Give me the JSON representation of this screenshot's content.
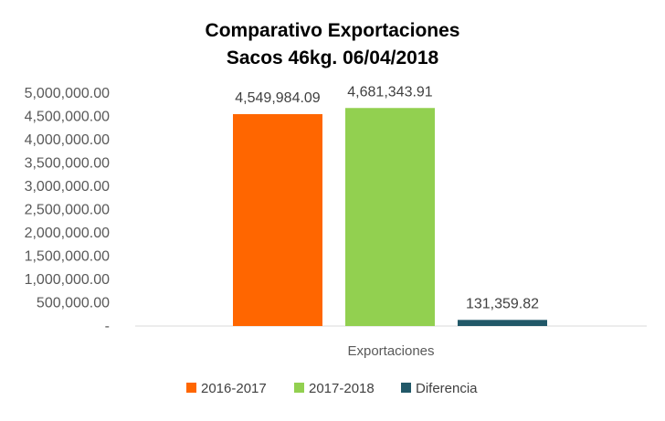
{
  "chart_data": {
    "type": "bar",
    "title": [
      "Comparativo  Exportaciones",
      "Sacos 46kg. 06/04/2018"
    ],
    "categories": [
      "Exportaciones"
    ],
    "series": [
      {
        "name": "2016-2017",
        "color": "#ff6600",
        "values": [
          4549984.09
        ],
        "label": "4,549,984.09"
      },
      {
        "name": "2017-2018",
        "color": "#92d050",
        "values": [
          4681343.91
        ],
        "label": "4,681,343.91"
      },
      {
        "name": "Diferencia",
        "color": "#215868",
        "values": [
          131359.82
        ],
        "label": "131,359.82"
      }
    ],
    "ylim": [
      0,
      5000000
    ],
    "yticks": [
      {
        "value": 0,
        "label": "-"
      },
      {
        "value": 500000,
        "label": "500,000.00"
      },
      {
        "value": 1000000,
        "label": "1,000,000.00"
      },
      {
        "value": 1500000,
        "label": "1,500,000.00"
      },
      {
        "value": 2000000,
        "label": "2,000,000.00"
      },
      {
        "value": 2500000,
        "label": "2,500,000.00"
      },
      {
        "value": 3000000,
        "label": "3,000,000.00"
      },
      {
        "value": 3500000,
        "label": "3,500,000.00"
      },
      {
        "value": 4000000,
        "label": "4,000,000.00"
      },
      {
        "value": 4500000,
        "label": "4,500,000.00"
      },
      {
        "value": 5000000,
        "label": "5,000,000.00"
      }
    ],
    "grid": false,
    "legend_position": "bottom"
  }
}
